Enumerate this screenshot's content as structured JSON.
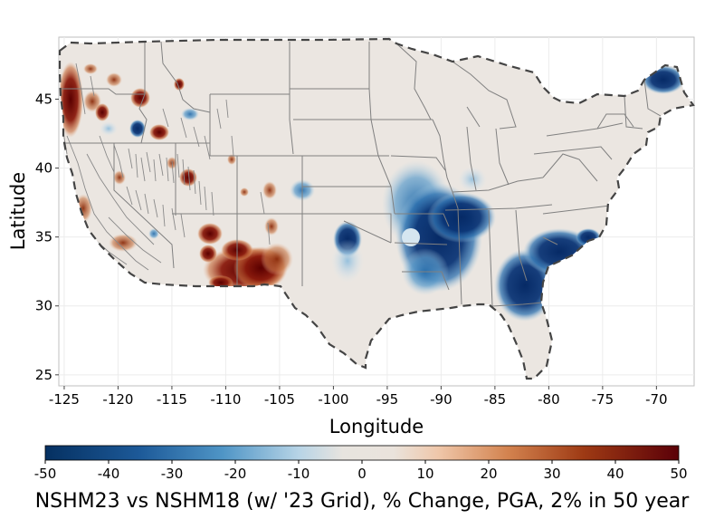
{
  "map": {
    "xlabel": "Longitude",
    "ylabel": "Latitude",
    "x_ticks": [
      -125,
      -120,
      -115,
      -110,
      -105,
      -100,
      -95,
      -90,
      -85,
      -80,
      -75,
      -70
    ],
    "y_ticks": [
      25,
      30,
      35,
      40,
      45
    ],
    "xlim": [
      -125.5,
      -66.5
    ],
    "ylim": [
      24.2,
      49.5
    ]
  },
  "colorbar": {
    "ticks": [
      -50,
      -40,
      -30,
      -20,
      -10,
      0,
      10,
      20,
      30,
      40,
      50
    ],
    "range": [
      -50,
      50
    ],
    "title": "NSHM23 vs NSHM18 (w/ '23 Grid), % Change, PGA, 2% in 50 year",
    "colors": [
      "#053061",
      "#2166ac",
      "#4393c3",
      "#92c5de",
      "#e8e4df",
      "#f4a582",
      "#d6604d",
      "#b2182b",
      "#67001f"
    ]
  },
  "colors": {
    "land": "#ebe6e1",
    "border": "#808080",
    "outline": "#444444",
    "blue_strong": "#0b3576",
    "blue_mid": "#3a80b9",
    "blue_light": "#a8cde3",
    "red_strong": "#6b0a0a",
    "red_mid": "#b5481c",
    "red_light": "#e0a07a"
  }
}
